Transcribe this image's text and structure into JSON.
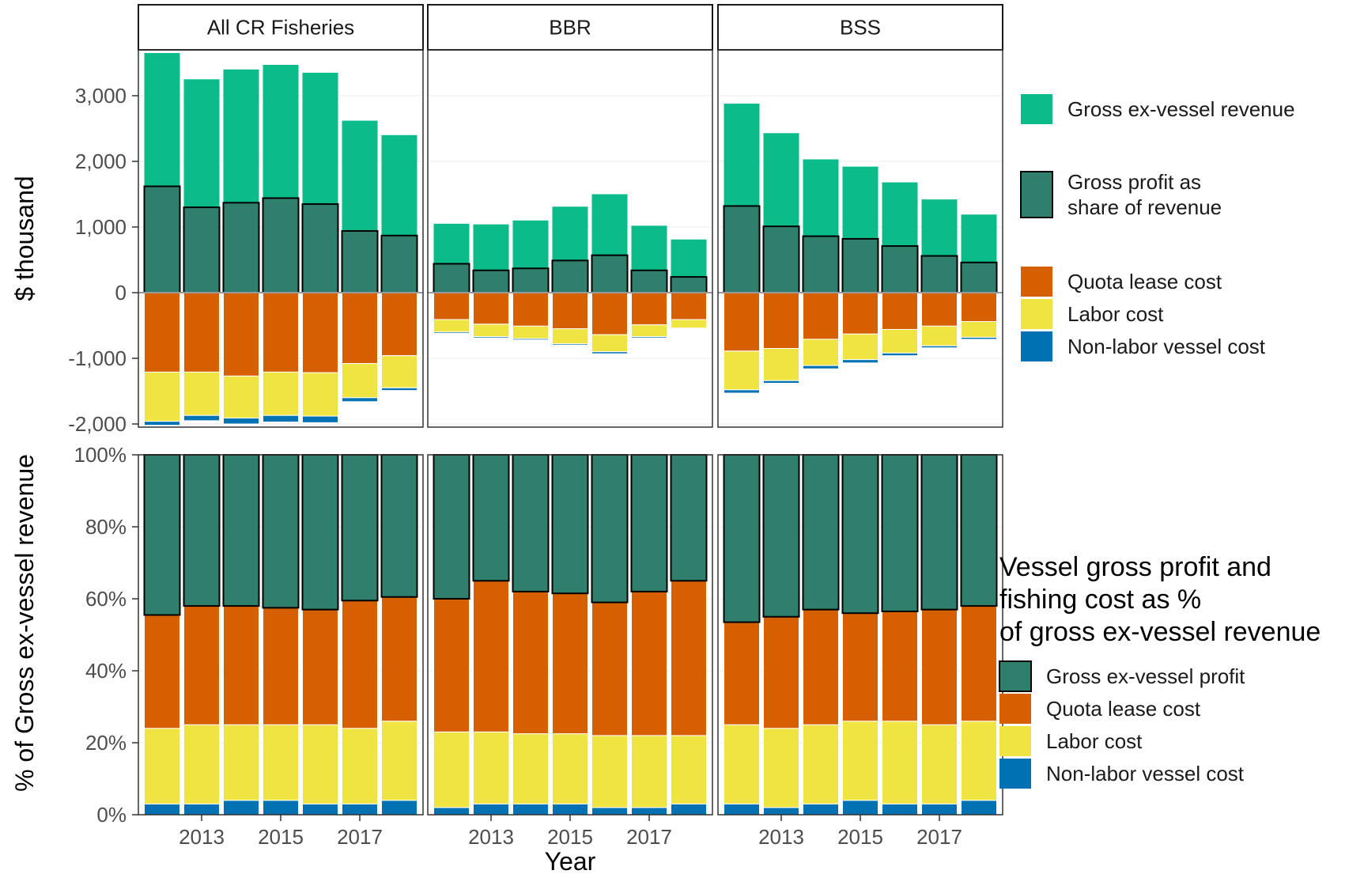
{
  "chart_data": {
    "type": "bar",
    "subtype": "faceted stacked bar",
    "facets": [
      "All CR Fisheries",
      "BBR",
      "BSS"
    ],
    "years": [
      2012,
      2013,
      2014,
      2015,
      2016,
      2017,
      2018
    ],
    "x_tick_labels": [
      "2013",
      "2015",
      "2017"
    ],
    "xlabel": "Year",
    "colors": {
      "revenue": "#0bbb8a",
      "profit": "#2f7f6c",
      "quota": "#d65f00",
      "labor": "#efe442",
      "nonlabor": "#0071b2"
    },
    "top": {
      "ylabel": "$ thousand",
      "ylim": [
        -2050,
        3650
      ],
      "y_ticks": [
        3000,
        2000,
        1000,
        0,
        -1000,
        -2000
      ],
      "y_tick_labels": [
        "3,000",
        "2,000",
        "1,000",
        "0",
        "-1,000",
        "-2,000"
      ],
      "series": {
        "All CR Fisheries": {
          "revenue": [
            3650,
            3250,
            3400,
            3470,
            3350,
            2620,
            2400
          ],
          "profit": [
            1620,
            1300,
            1370,
            1440,
            1350,
            940,
            870
          ],
          "quota": [
            1210,
            1210,
            1270,
            1210,
            1220,
            1080,
            960
          ],
          "labor": [
            750,
            660,
            640,
            660,
            660,
            520,
            490
          ],
          "nonlabor": [
            60,
            80,
            90,
            100,
            100,
            60,
            40
          ]
        },
        "BBR": {
          "revenue": [
            1050,
            1040,
            1100,
            1310,
            1500,
            1020,
            810
          ],
          "profit": [
            440,
            340,
            370,
            490,
            570,
            340,
            240
          ],
          "quota": [
            410,
            480,
            510,
            550,
            640,
            490,
            410
          ],
          "labor": [
            190,
            190,
            190,
            230,
            260,
            180,
            130
          ],
          "nonlabor": [
            20,
            20,
            20,
            20,
            30,
            20,
            10
          ]
        },
        "BSS": {
          "revenue": [
            2880,
            2430,
            2030,
            1920,
            1680,
            1420,
            1190
          ],
          "profit": [
            1320,
            1010,
            860,
            820,
            710,
            560,
            460
          ],
          "quota": [
            890,
            850,
            710,
            630,
            560,
            510,
            440
          ],
          "labor": [
            590,
            490,
            400,
            390,
            360,
            300,
            240
          ],
          "nonlabor": [
            50,
            40,
            50,
            50,
            40,
            30,
            30
          ]
        }
      }
    },
    "bottom": {
      "ylabel": "% of Gross ex-vessel revenue",
      "ylim": [
        0,
        100
      ],
      "y_ticks": [
        100,
        80,
        60,
        40,
        20,
        0
      ],
      "y_tick_labels": [
        "100%",
        "80%",
        "60%",
        "40%",
        "20%",
        "0%"
      ],
      "series": {
        "All CR Fisheries": {
          "nonlabor": [
            3,
            3,
            4,
            4,
            3,
            3,
            4
          ],
          "labor": [
            21,
            22,
            21,
            21,
            22,
            21,
            22
          ],
          "quota": [
            31.5,
            33,
            33,
            32.5,
            32,
            35.5,
            34.5
          ],
          "profit": [
            44.5,
            42,
            42,
            42.5,
            43,
            40.5,
            39.5
          ]
        },
        "BBR": {
          "nonlabor": [
            2,
            3,
            3,
            3,
            2,
            2,
            3
          ],
          "labor": [
            21,
            20,
            19.5,
            19.5,
            20,
            20,
            19
          ],
          "quota": [
            37,
            42,
            39.5,
            39,
            37,
            40,
            43
          ],
          "profit": [
            40,
            35,
            38,
            38.5,
            41,
            38,
            35
          ]
        },
        "BSS": {
          "nonlabor": [
            3,
            2,
            3,
            4,
            3,
            3,
            4
          ],
          "labor": [
            22,
            22,
            22,
            22,
            23,
            22,
            22
          ],
          "quota": [
            28.5,
            31,
            32,
            30,
            30.5,
            32,
            32
          ],
          "profit": [
            46.5,
            45,
            43,
            44,
            43.5,
            43,
            42
          ]
        }
      }
    },
    "legend_top": [
      {
        "key": "revenue",
        "label": [
          "Gross ex-vessel revenue"
        ]
      },
      {
        "key": "profit",
        "label": [
          "Gross profit as",
          "share of revenue"
        ]
      },
      {
        "key": "quota",
        "label": [
          "Quota lease cost"
        ]
      },
      {
        "key": "labor",
        "label": [
          "Labor cost"
        ]
      },
      {
        "key": "nonlabor",
        "label": [
          "Non-labor vessel cost"
        ]
      }
    ],
    "legend_bottom": {
      "title": [
        "Vessel gross profit and",
        "fishing cost as %",
        "of gross ex-vessel revenue"
      ],
      "items": [
        {
          "key": "profit",
          "label": "Gross ex-vessel profit"
        },
        {
          "key": "quota",
          "label": "Quota lease cost"
        },
        {
          "key": "labor",
          "label": "Labor cost"
        },
        {
          "key": "nonlabor",
          "label": "Non-labor vessel cost"
        }
      ]
    }
  }
}
